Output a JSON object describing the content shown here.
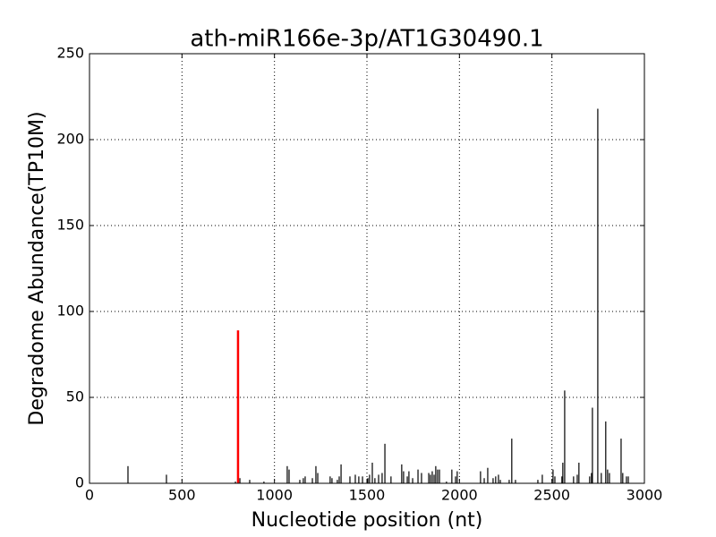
{
  "chart_data": {
    "type": "spike",
    "title": "ath-miR166e-3p/AT1G30490.1",
    "xlabel": "Nucleotide position (nt)",
    "ylabel": "Degradome Abundance(TP10M)",
    "xlim": [
      0,
      3000
    ],
    "ylim": [
      0,
      250
    ],
    "xticks": [
      0,
      500,
      1000,
      1500,
      2000,
      2500,
      3000
    ],
    "yticks": [
      0,
      50,
      100,
      150,
      200,
      250
    ],
    "grid": true,
    "series": [
      {
        "color": "#000000",
        "x": [
          208,
          416,
          789,
          813,
          866,
          943,
          1069,
          1079,
          1137,
          1156,
          1166,
          1205,
          1224,
          1234,
          1301,
          1311,
          1340,
          1350,
          1360,
          1408,
          1437,
          1456,
          1476,
          1505,
          1514,
          1529,
          1543,
          1563,
          1582,
          1597,
          1630,
          1688,
          1698,
          1718,
          1727,
          1747,
          1776,
          1795,
          1834,
          1843,
          1853,
          1863,
          1872,
          1882,
          1892,
          1930,
          1959,
          1979,
          1988,
          2114,
          2134,
          2153,
          2182,
          2196,
          2211,
          2221,
          2269,
          2283,
          2303,
          2424,
          2448,
          2506,
          2516,
          2554,
          2559,
          2569,
          2617,
          2637,
          2646,
          2704,
          2714,
          2719,
          2748,
          2767,
          2791,
          2801,
          2811,
          2874,
          2883,
          2903,
          2913
        ],
        "values": [
          10,
          5,
          1,
          3,
          2,
          1,
          10,
          8,
          2,
          3,
          4,
          3,
          10,
          6,
          4,
          3,
          2,
          4,
          11,
          4,
          5,
          4,
          4,
          3,
          5,
          12,
          3,
          5,
          6,
          23,
          4,
          11,
          7,
          4,
          7,
          3,
          8,
          6,
          6,
          5,
          7,
          5,
          10,
          8,
          8,
          1,
          8,
          4,
          7,
          7,
          3,
          9,
          3,
          4,
          5,
          2,
          2,
          26,
          2,
          2,
          5,
          8,
          4,
          4,
          12,
          54,
          4,
          5,
          12,
          4,
          6,
          44,
          218,
          6,
          36,
          8,
          6,
          26,
          6,
          4,
          4
        ]
      },
      {
        "color": "#ff0000",
        "x": [
          803
        ],
        "values": [
          89
        ]
      }
    ]
  }
}
